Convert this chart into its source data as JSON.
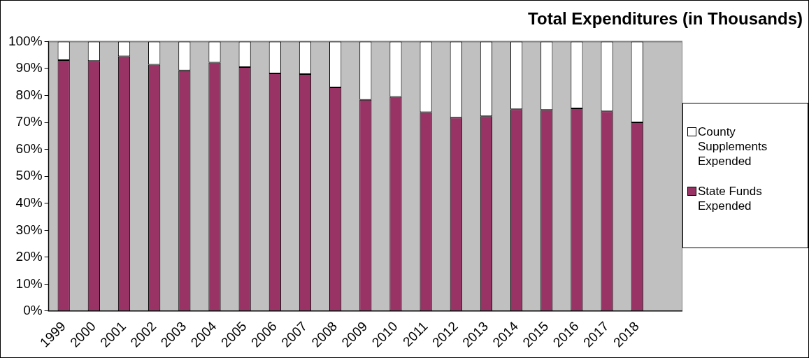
{
  "chart_data": {
    "type": "bar",
    "title": "Total Expenditures (in Thousands)",
    "stacked": true,
    "grid": false,
    "legend": "right",
    "categories": [
      "1999",
      "2000",
      "2001",
      "2002",
      "2003",
      "2004",
      "2005",
      "2006",
      "2007",
      "2008",
      "2009",
      "2010",
      "2011",
      "2012",
      "2013",
      "2014",
      "2015",
      "2016",
      "2017",
      "2018",
      null
    ],
    "ylim": [
      0,
      100
    ],
    "yticks": [
      {
        "value": 0,
        "label": "0%"
      },
      {
        "value": 10,
        "label": "10%"
      },
      {
        "value": 20,
        "label": "20%"
      },
      {
        "value": 30,
        "label": "30%"
      },
      {
        "value": 40,
        "label": "40%"
      },
      {
        "value": 50,
        "label": "50%"
      },
      {
        "value": 60,
        "label": "60%"
      },
      {
        "value": 70,
        "label": "70%"
      },
      {
        "value": 80,
        "label": "80%"
      },
      {
        "value": 90,
        "label": "90%"
      },
      {
        "value": 100,
        "label": "100%"
      }
    ],
    "series": [
      {
        "name": "State Funds Expended",
        "color": "#993366",
        "values": [
          93.1,
          92.8,
          94.5,
          91.4,
          89.3,
          92.2,
          90.5,
          88.2,
          87.9,
          83.0,
          78.4,
          79.5,
          73.8,
          71.8,
          72.3,
          74.9,
          74.6,
          75.2,
          74.1,
          70.0,
          null
        ]
      },
      {
        "name": "County Supplements Expended",
        "color": "#ffffff",
        "values": [
          6.9,
          7.2,
          5.5,
          8.6,
          10.7,
          7.8,
          9.5,
          11.8,
          12.1,
          17.0,
          21.6,
          20.5,
          26.2,
          28.2,
          27.7,
          25.1,
          25.4,
          24.8,
          25.9,
          30.0,
          null
        ]
      }
    ]
  }
}
